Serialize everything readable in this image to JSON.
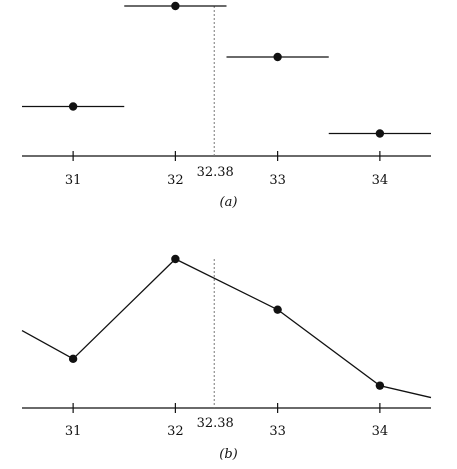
{
  "chart_data": [
    {
      "id": "a",
      "caption": "(a)",
      "type": "step",
      "xlim": [
        30.5,
        34.5
      ],
      "ylim": [
        0,
        1
      ],
      "x_ticks": [
        31,
        32,
        33,
        34
      ],
      "x_tick_labels": [
        "31",
        "32",
        "33",
        "34"
      ],
      "marker": {
        "x": 32.38,
        "label": "32.38"
      },
      "points": [
        {
          "x": 31,
          "y": 0.33,
          "x_from": 30.5,
          "x_to": 31.5
        },
        {
          "x": 32,
          "y": 1.0,
          "x_from": 31.5,
          "x_to": 32.5
        },
        {
          "x": 33,
          "y": 0.66,
          "x_from": 32.5,
          "x_to": 33.5
        },
        {
          "x": 34,
          "y": 0.15,
          "x_from": 33.5,
          "x_to": 34.5
        }
      ]
    },
    {
      "id": "b",
      "caption": "(b)",
      "type": "line",
      "xlim": [
        30.5,
        34.5
      ],
      "ylim": [
        0,
        1
      ],
      "x_ticks": [
        31,
        32,
        33,
        34
      ],
      "x_tick_labels": [
        "31",
        "32",
        "33",
        "34"
      ],
      "marker": {
        "x": 32.38,
        "label": "32.38"
      },
      "points": [
        {
          "x": 31,
          "y": 0.33
        },
        {
          "x": 32,
          "y": 1.0
        },
        {
          "x": 33,
          "y": 0.66
        },
        {
          "x": 34,
          "y": 0.15
        }
      ],
      "edge_start": {
        "x": 30.5,
        "y": 0.52
      },
      "edge_end": {
        "x": 34.5,
        "y": 0.07
      }
    }
  ],
  "colors": {
    "ink": "#111111",
    "marker_line": "#777777"
  }
}
